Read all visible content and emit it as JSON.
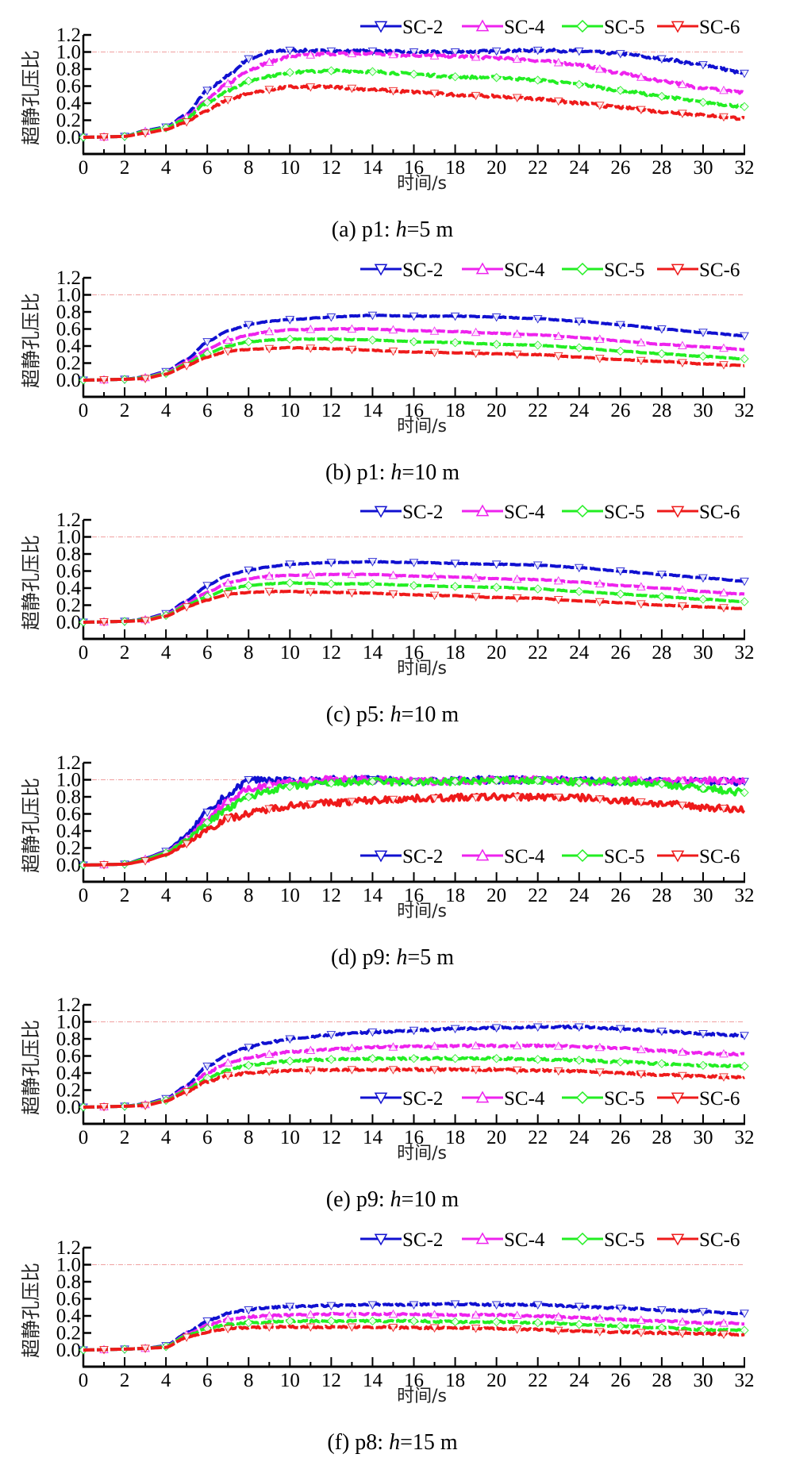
{
  "figure": {
    "ylabel": "超静孔压比",
    "xlabel": "时间/s",
    "reference_line_value": 1.0
  },
  "colors": {
    "SC-2": "#1010d0",
    "SC-4": "#ee22ee",
    "SC-5": "#22ee22",
    "SC-6": "#ee1a1a",
    "reference": "#f0a0a0",
    "axis": "#000000"
  },
  "chart_data": [
    {
      "type": "line",
      "caption_prefix": "(a) p1: ",
      "caption_italic": "h",
      "caption_suffix": "=5 m",
      "xlabel": "时间/s",
      "ylabel": "超静孔压比",
      "xlim": [
        0,
        32
      ],
      "ylim": [
        0,
        1.2
      ],
      "xticks": [
        0,
        2,
        4,
        6,
        8,
        10,
        12,
        14,
        16,
        18,
        20,
        22,
        24,
        26,
        28,
        30,
        32
      ],
      "yticks": [
        "0.0",
        "0.2",
        "0.4",
        "0.6",
        "0.8",
        "1.0",
        "1.2"
      ],
      "legend_position": "top-right",
      "noise": 0.015,
      "x": [
        0,
        2,
        3,
        4,
        5,
        6,
        7,
        8,
        9,
        10,
        12,
        14,
        16,
        18,
        20,
        22,
        24,
        26,
        28,
        30,
        32
      ],
      "series": [
        {
          "name": "SC-2",
          "marker": "triangle-down",
          "values": [
            0,
            0.01,
            0.08,
            0.12,
            0.27,
            0.55,
            0.72,
            0.92,
            1.0,
            1.02,
            1.01,
            1.01,
            1.0,
            1.0,
            1.01,
            1.02,
            1.01,
            0.98,
            0.92,
            0.85,
            0.75
          ]
        },
        {
          "name": "SC-4",
          "marker": "triangle-up",
          "values": [
            0,
            0.01,
            0.07,
            0.11,
            0.24,
            0.45,
            0.63,
            0.79,
            0.88,
            0.95,
            0.98,
            0.98,
            0.96,
            0.95,
            0.93,
            0.9,
            0.85,
            0.75,
            0.66,
            0.58,
            0.52
          ]
        },
        {
          "name": "SC-5",
          "marker": "diamond",
          "values": [
            0,
            0.01,
            0.07,
            0.11,
            0.22,
            0.41,
            0.55,
            0.66,
            0.72,
            0.76,
            0.78,
            0.77,
            0.74,
            0.71,
            0.7,
            0.67,
            0.62,
            0.55,
            0.48,
            0.41,
            0.36
          ]
        },
        {
          "name": "SC-6",
          "marker": "triangle-down",
          "values": [
            0,
            0.01,
            0.05,
            0.09,
            0.18,
            0.32,
            0.44,
            0.51,
            0.56,
            0.59,
            0.59,
            0.56,
            0.53,
            0.5,
            0.48,
            0.45,
            0.4,
            0.35,
            0.3,
            0.26,
            0.22
          ]
        }
      ]
    },
    {
      "type": "line",
      "caption_prefix": "(b) p1: ",
      "caption_italic": "h",
      "caption_suffix": "=10 m",
      "xlabel": "时间/s",
      "ylabel": "超静孔压比",
      "xlim": [
        0,
        32
      ],
      "ylim": [
        0,
        1.2
      ],
      "xticks": [
        0,
        2,
        4,
        6,
        8,
        10,
        12,
        14,
        16,
        18,
        20,
        22,
        24,
        26,
        28,
        30,
        32
      ],
      "yticks": [
        "0.0",
        "0.2",
        "0.4",
        "0.6",
        "0.8",
        "1.0",
        "1.2"
      ],
      "legend_position": "top-right",
      "noise": 0.004,
      "x": [
        0,
        2,
        3,
        4,
        5,
        6,
        7,
        8,
        9,
        10,
        12,
        14,
        16,
        18,
        20,
        22,
        24,
        26,
        28,
        30,
        32
      ],
      "series": [
        {
          "name": "SC-2",
          "marker": "triangle-down",
          "values": [
            0,
            0.01,
            0.04,
            0.1,
            0.24,
            0.45,
            0.58,
            0.65,
            0.69,
            0.71,
            0.74,
            0.76,
            0.75,
            0.75,
            0.74,
            0.72,
            0.69,
            0.65,
            0.6,
            0.56,
            0.52
          ]
        },
        {
          "name": "SC-4",
          "marker": "triangle-up",
          "values": [
            0,
            0.01,
            0.03,
            0.09,
            0.21,
            0.36,
            0.47,
            0.53,
            0.57,
            0.59,
            0.6,
            0.6,
            0.58,
            0.57,
            0.55,
            0.53,
            0.5,
            0.46,
            0.42,
            0.39,
            0.36
          ]
        },
        {
          "name": "SC-5",
          "marker": "diamond",
          "values": [
            0,
            0.01,
            0.03,
            0.08,
            0.19,
            0.31,
            0.4,
            0.45,
            0.47,
            0.48,
            0.48,
            0.47,
            0.45,
            0.44,
            0.42,
            0.41,
            0.38,
            0.34,
            0.31,
            0.28,
            0.25
          ]
        },
        {
          "name": "SC-6",
          "marker": "triangle-down",
          "values": [
            0,
            0.01,
            0.02,
            0.07,
            0.17,
            0.27,
            0.34,
            0.36,
            0.37,
            0.38,
            0.37,
            0.35,
            0.33,
            0.32,
            0.31,
            0.3,
            0.27,
            0.24,
            0.22,
            0.19,
            0.17
          ]
        }
      ]
    },
    {
      "type": "line",
      "caption_prefix": "(c) p5: ",
      "caption_italic": "h",
      "caption_suffix": "=10 m",
      "xlabel": "时间/s",
      "ylabel": "超静孔压比",
      "xlim": [
        0,
        32
      ],
      "ylim": [
        0,
        1.2
      ],
      "xticks": [
        0,
        2,
        4,
        6,
        8,
        10,
        12,
        14,
        16,
        18,
        20,
        22,
        24,
        26,
        28,
        30,
        32
      ],
      "yticks": [
        "0.0",
        "0.2",
        "0.4",
        "0.6",
        "0.8",
        "1.0",
        "1.2"
      ],
      "legend_position": "top-right",
      "noise": 0.004,
      "x": [
        0,
        2,
        3,
        4,
        5,
        6,
        7,
        8,
        9,
        10,
        12,
        14,
        16,
        18,
        20,
        22,
        24,
        26,
        28,
        30,
        32
      ],
      "series": [
        {
          "name": "SC-2",
          "marker": "triangle-down",
          "values": [
            0,
            0.01,
            0.04,
            0.1,
            0.25,
            0.43,
            0.55,
            0.61,
            0.65,
            0.68,
            0.7,
            0.71,
            0.7,
            0.69,
            0.68,
            0.67,
            0.64,
            0.6,
            0.56,
            0.52,
            0.48
          ]
        },
        {
          "name": "SC-4",
          "marker": "triangle-up",
          "values": [
            0,
            0.01,
            0.03,
            0.09,
            0.22,
            0.35,
            0.46,
            0.51,
            0.54,
            0.55,
            0.56,
            0.56,
            0.54,
            0.53,
            0.51,
            0.5,
            0.47,
            0.43,
            0.4,
            0.36,
            0.33
          ]
        },
        {
          "name": "SC-5",
          "marker": "diamond",
          "values": [
            0,
            0.01,
            0.03,
            0.08,
            0.2,
            0.3,
            0.39,
            0.43,
            0.45,
            0.46,
            0.45,
            0.45,
            0.43,
            0.42,
            0.41,
            0.39,
            0.36,
            0.33,
            0.3,
            0.27,
            0.24
          ]
        },
        {
          "name": "SC-6",
          "marker": "triangle-down",
          "values": [
            0,
            0.01,
            0.02,
            0.07,
            0.18,
            0.26,
            0.33,
            0.35,
            0.36,
            0.36,
            0.35,
            0.34,
            0.32,
            0.31,
            0.29,
            0.28,
            0.25,
            0.23,
            0.2,
            0.18,
            0.16
          ]
        }
      ]
    },
    {
      "type": "line",
      "caption_prefix": "(d) p9: ",
      "caption_italic": "h",
      "caption_suffix": "=5 m",
      "xlabel": "时间/s",
      "ylabel": "超静孔压比",
      "xlim": [
        0,
        32
      ],
      "ylim": [
        0,
        1.2
      ],
      "xticks": [
        0,
        2,
        4,
        6,
        8,
        10,
        12,
        14,
        16,
        18,
        20,
        22,
        24,
        26,
        28,
        30,
        32
      ],
      "yticks": [
        "0.0",
        "0.2",
        "0.4",
        "0.6",
        "0.8",
        "1.0",
        "1.2"
      ],
      "legend_position": "bottom-right",
      "noise": 0.04,
      "x": [
        0,
        2,
        3,
        4,
        5,
        6,
        7,
        8,
        9,
        10,
        12,
        14,
        16,
        18,
        20,
        22,
        24,
        26,
        28,
        30,
        32
      ],
      "series": [
        {
          "name": "SC-2",
          "marker": "triangle-down",
          "values": [
            0,
            0.01,
            0.08,
            0.16,
            0.35,
            0.62,
            0.82,
            1.0,
            1.0,
            0.98,
            1.0,
            1.0,
            0.98,
            0.99,
            1.0,
            1.0,
            0.99,
            0.98,
            0.98,
            0.98,
            0.98
          ]
        },
        {
          "name": "SC-4",
          "marker": "triangle-up",
          "values": [
            0,
            0.01,
            0.07,
            0.15,
            0.31,
            0.55,
            0.75,
            0.88,
            0.95,
            0.98,
            1.0,
            1.0,
            0.98,
            0.99,
            1.0,
            1.0,
            0.98,
            0.99,
            0.99,
            0.99,
            0.99
          ]
        },
        {
          "name": "SC-5",
          "marker": "diamond",
          "values": [
            0,
            0.01,
            0.07,
            0.14,
            0.29,
            0.5,
            0.66,
            0.8,
            0.88,
            0.92,
            0.96,
            0.98,
            0.97,
            0.98,
            0.99,
            0.99,
            0.97,
            0.98,
            0.95,
            0.9,
            0.85
          ]
        },
        {
          "name": "SC-6",
          "marker": "triangle-down",
          "values": [
            0,
            0.01,
            0.05,
            0.12,
            0.25,
            0.42,
            0.55,
            0.6,
            0.66,
            0.7,
            0.73,
            0.76,
            0.78,
            0.79,
            0.8,
            0.8,
            0.79,
            0.76,
            0.72,
            0.68,
            0.65
          ]
        }
      ]
    },
    {
      "type": "line",
      "caption_prefix": "(e) p9: ",
      "caption_italic": "h",
      "caption_suffix": "=10 m",
      "xlabel": "时间/s",
      "ylabel": "超静孔压比",
      "xlim": [
        0,
        32
      ],
      "ylim": [
        0,
        1.2
      ],
      "xticks": [
        0,
        2,
        4,
        6,
        8,
        10,
        12,
        14,
        16,
        18,
        20,
        22,
        24,
        26,
        28,
        30,
        32
      ],
      "yticks": [
        "0.0",
        "0.2",
        "0.4",
        "0.6",
        "0.8",
        "1.0",
        "1.2"
      ],
      "legend_position": "bottom-right",
      "noise": 0.012,
      "x": [
        0,
        2,
        3,
        4,
        5,
        6,
        7,
        8,
        9,
        10,
        12,
        14,
        16,
        18,
        20,
        22,
        24,
        26,
        28,
        30,
        32
      ],
      "series": [
        {
          "name": "SC-2",
          "marker": "triangle-down",
          "values": [
            0,
            0.01,
            0.04,
            0.1,
            0.25,
            0.48,
            0.62,
            0.7,
            0.76,
            0.8,
            0.85,
            0.88,
            0.9,
            0.92,
            0.93,
            0.94,
            0.94,
            0.92,
            0.89,
            0.86,
            0.84
          ]
        },
        {
          "name": "SC-4",
          "marker": "triangle-up",
          "values": [
            0,
            0.01,
            0.03,
            0.09,
            0.22,
            0.4,
            0.52,
            0.58,
            0.62,
            0.65,
            0.68,
            0.7,
            0.71,
            0.72,
            0.72,
            0.72,
            0.71,
            0.69,
            0.66,
            0.63,
            0.62
          ]
        },
        {
          "name": "SC-5",
          "marker": "diamond",
          "values": [
            0,
            0.01,
            0.03,
            0.08,
            0.2,
            0.34,
            0.44,
            0.49,
            0.52,
            0.54,
            0.56,
            0.57,
            0.57,
            0.57,
            0.57,
            0.56,
            0.55,
            0.53,
            0.51,
            0.49,
            0.48
          ]
        },
        {
          "name": "SC-6",
          "marker": "triangle-down",
          "values": [
            0,
            0.01,
            0.02,
            0.07,
            0.18,
            0.3,
            0.37,
            0.4,
            0.42,
            0.43,
            0.44,
            0.44,
            0.44,
            0.44,
            0.44,
            0.43,
            0.42,
            0.4,
            0.38,
            0.36,
            0.35
          ]
        }
      ]
    },
    {
      "type": "line",
      "caption_prefix": "(f) p8: ",
      "caption_italic": "h",
      "caption_suffix": "=15 m",
      "xlabel": "时间/s",
      "ylabel": "超静孔压比",
      "xlim": [
        0,
        32
      ],
      "ylim": [
        0,
        1.2
      ],
      "xticks": [
        0,
        2,
        4,
        6,
        8,
        10,
        12,
        14,
        16,
        18,
        20,
        22,
        24,
        26,
        28,
        30,
        32
      ],
      "yticks": [
        "0.0",
        "0.2",
        "0.4",
        "0.6",
        "0.8",
        "1.0",
        "1.2"
      ],
      "legend_position": "top-right",
      "noise": 0.01,
      "x": [
        0,
        2,
        3,
        4,
        5,
        6,
        7,
        8,
        9,
        10,
        12,
        14,
        16,
        18,
        20,
        22,
        24,
        26,
        28,
        30,
        32
      ],
      "series": [
        {
          "name": "SC-2",
          "marker": "triangle-down",
          "values": [
            0,
            0.01,
            0.02,
            0.05,
            0.2,
            0.34,
            0.43,
            0.47,
            0.5,
            0.51,
            0.52,
            0.53,
            0.53,
            0.54,
            0.53,
            0.53,
            0.51,
            0.49,
            0.47,
            0.45,
            0.43
          ]
        },
        {
          "name": "SC-4",
          "marker": "triangle-up",
          "values": [
            0,
            0.01,
            0.02,
            0.04,
            0.18,
            0.29,
            0.36,
            0.39,
            0.4,
            0.41,
            0.42,
            0.42,
            0.42,
            0.41,
            0.41,
            0.4,
            0.38,
            0.36,
            0.34,
            0.32,
            0.31
          ]
        },
        {
          "name": "SC-5",
          "marker": "diamond",
          "values": [
            0,
            0.01,
            0.02,
            0.04,
            0.17,
            0.25,
            0.3,
            0.32,
            0.33,
            0.34,
            0.34,
            0.34,
            0.34,
            0.33,
            0.33,
            0.32,
            0.3,
            0.28,
            0.26,
            0.24,
            0.23
          ]
        },
        {
          "name": "SC-6",
          "marker": "triangle-down",
          "values": [
            0,
            0.01,
            0.02,
            0.03,
            0.15,
            0.21,
            0.25,
            0.26,
            0.27,
            0.27,
            0.27,
            0.27,
            0.26,
            0.26,
            0.25,
            0.24,
            0.22,
            0.21,
            0.2,
            0.19,
            0.18
          ]
        }
      ]
    }
  ]
}
